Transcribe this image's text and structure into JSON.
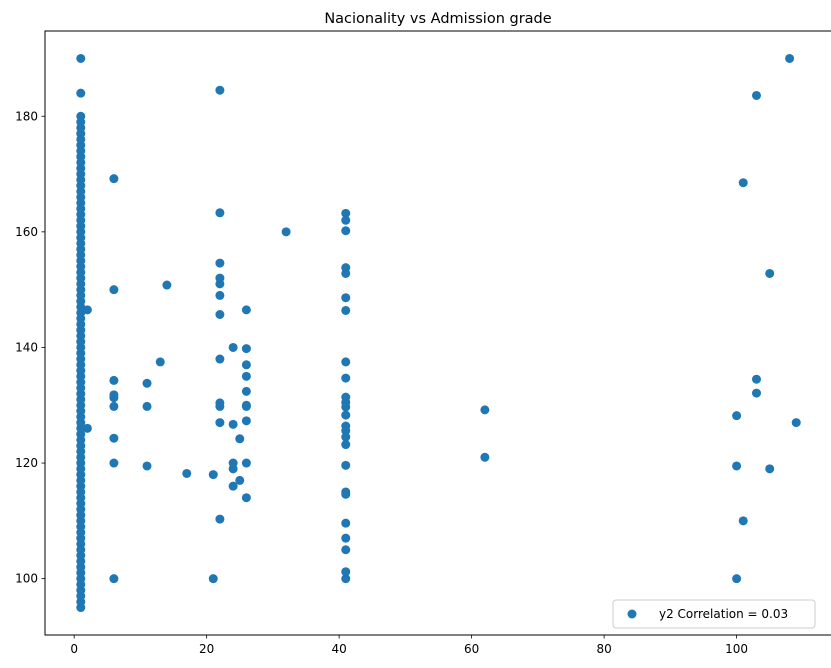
{
  "chart_data": {
    "type": "scatter",
    "title": "Nacionality vs Admission grade",
    "xlabel": "",
    "ylabel": "",
    "xlim": [
      -4.4,
      114.4
    ],
    "ylim": [
      90.25,
      194.75
    ],
    "xticks": [
      0,
      20,
      40,
      60,
      80,
      100
    ],
    "yticks": [
      100,
      120,
      140,
      160,
      180
    ],
    "grid": false,
    "legend_position": "lower right",
    "color": "#1f77b4",
    "series": [
      {
        "name": "y2 Correlation = 0.03",
        "points": [
          [
            1,
            95
          ],
          [
            1,
            96
          ],
          [
            1,
            97
          ],
          [
            1,
            98
          ],
          [
            1,
            99
          ],
          [
            1,
            100
          ],
          [
            1,
            101
          ],
          [
            1,
            102
          ],
          [
            1,
            103
          ],
          [
            1,
            104
          ],
          [
            1,
            105
          ],
          [
            1,
            106
          ],
          [
            1,
            107
          ],
          [
            1,
            108
          ],
          [
            1,
            109
          ],
          [
            1,
            110
          ],
          [
            1,
            111
          ],
          [
            1,
            112
          ],
          [
            1,
            113
          ],
          [
            1,
            114
          ],
          [
            1,
            115
          ],
          [
            1,
            116
          ],
          [
            1,
            117
          ],
          [
            1,
            118
          ],
          [
            1,
            119
          ],
          [
            1,
            120
          ],
          [
            1,
            121
          ],
          [
            1,
            122
          ],
          [
            1,
            123
          ],
          [
            1,
            124
          ],
          [
            1,
            125
          ],
          [
            1,
            126
          ],
          [
            1,
            127
          ],
          [
            1,
            128
          ],
          [
            1,
            129
          ],
          [
            1,
            130
          ],
          [
            1,
            131
          ],
          [
            1,
            132
          ],
          [
            1,
            133
          ],
          [
            1,
            134
          ],
          [
            1,
            135
          ],
          [
            1,
            136
          ],
          [
            1,
            137
          ],
          [
            1,
            138
          ],
          [
            1,
            139
          ],
          [
            1,
            140
          ],
          [
            1,
            141
          ],
          [
            1,
            142
          ],
          [
            1,
            143
          ],
          [
            1,
            144
          ],
          [
            1,
            145
          ],
          [
            1,
            146
          ],
          [
            1,
            147
          ],
          [
            1,
            148
          ],
          [
            1,
            149
          ],
          [
            1,
            150
          ],
          [
            1,
            151
          ],
          [
            1,
            152
          ],
          [
            1,
            153
          ],
          [
            1,
            154
          ],
          [
            1,
            155
          ],
          [
            1,
            156
          ],
          [
            1,
            157
          ],
          [
            1,
            158
          ],
          [
            1,
            159
          ],
          [
            1,
            160
          ],
          [
            1,
            161
          ],
          [
            1,
            162
          ],
          [
            1,
            163
          ],
          [
            1,
            164
          ],
          [
            1,
            165
          ],
          [
            1,
            166
          ],
          [
            1,
            167
          ],
          [
            1,
            168
          ],
          [
            1,
            169
          ],
          [
            1,
            170
          ],
          [
            1,
            171
          ],
          [
            1,
            172
          ],
          [
            1,
            173
          ],
          [
            1,
            174
          ],
          [
            1,
            175
          ],
          [
            1,
            176
          ],
          [
            1,
            177
          ],
          [
            1,
            178
          ],
          [
            1,
            179
          ],
          [
            1,
            180
          ],
          [
            1,
            184
          ],
          [
            1,
            190
          ],
          [
            2,
            126
          ],
          [
            2,
            146.5
          ],
          [
            6,
            100
          ],
          [
            6,
            120
          ],
          [
            6,
            124.3
          ],
          [
            6,
            129.8
          ],
          [
            6,
            131.3
          ],
          [
            6,
            131.8
          ],
          [
            6,
            134.3
          ],
          [
            6,
            150
          ],
          [
            6,
            169.2
          ],
          [
            11,
            119.5
          ],
          [
            11,
            129.8
          ],
          [
            11,
            133.8
          ],
          [
            13,
            137.5
          ],
          [
            14,
            150.8
          ],
          [
            17,
            118.2
          ],
          [
            21,
            100
          ],
          [
            21,
            118
          ],
          [
            22,
            110.3
          ],
          [
            22,
            127
          ],
          [
            22,
            129.8
          ],
          [
            22,
            130.4
          ],
          [
            22,
            138
          ],
          [
            22,
            145.7
          ],
          [
            22,
            149
          ],
          [
            22,
            151
          ],
          [
            22,
            152
          ],
          [
            22,
            154.6
          ],
          [
            22,
            163.3
          ],
          [
            22,
            184.5
          ],
          [
            24,
            116
          ],
          [
            24,
            119
          ],
          [
            24,
            120
          ],
          [
            24,
            126.7
          ],
          [
            24,
            140
          ],
          [
            25,
            117
          ],
          [
            25,
            124.2
          ],
          [
            26,
            114
          ],
          [
            26,
            120
          ],
          [
            26,
            127.3
          ],
          [
            26,
            129.8
          ],
          [
            26,
            130
          ],
          [
            26,
            132.4
          ],
          [
            26,
            135
          ],
          [
            26,
            137
          ],
          [
            26,
            139.8
          ],
          [
            26,
            146.5
          ],
          [
            32,
            160
          ],
          [
            41,
            100
          ],
          [
            41,
            101.2
          ],
          [
            41,
            105
          ],
          [
            41,
            107
          ],
          [
            41,
            109.6
          ],
          [
            41,
            114.6
          ],
          [
            41,
            115
          ],
          [
            41,
            119.6
          ],
          [
            41,
            123.2
          ],
          [
            41,
            124.5
          ],
          [
            41,
            125.6
          ],
          [
            41,
            126.4
          ],
          [
            41,
            128.3
          ],
          [
            41,
            129.7
          ],
          [
            41,
            130.5
          ],
          [
            41,
            131.4
          ],
          [
            41,
            134.7
          ],
          [
            41,
            137.5
          ],
          [
            41,
            146.4
          ],
          [
            41,
            148.6
          ],
          [
            41,
            152.8
          ],
          [
            41,
            153.8
          ],
          [
            41,
            160.2
          ],
          [
            41,
            162
          ],
          [
            41,
            163.2
          ],
          [
            62,
            121
          ],
          [
            62,
            129.2
          ],
          [
            100,
            100
          ],
          [
            100,
            119.5
          ],
          [
            100,
            128.2
          ],
          [
            101,
            110
          ],
          [
            101,
            168.5
          ],
          [
            103,
            132.1
          ],
          [
            103,
            134.5
          ],
          [
            103,
            183.6
          ],
          [
            105,
            119
          ],
          [
            105,
            152.8
          ],
          [
            108,
            190
          ],
          [
            109,
            127
          ]
        ]
      }
    ]
  }
}
